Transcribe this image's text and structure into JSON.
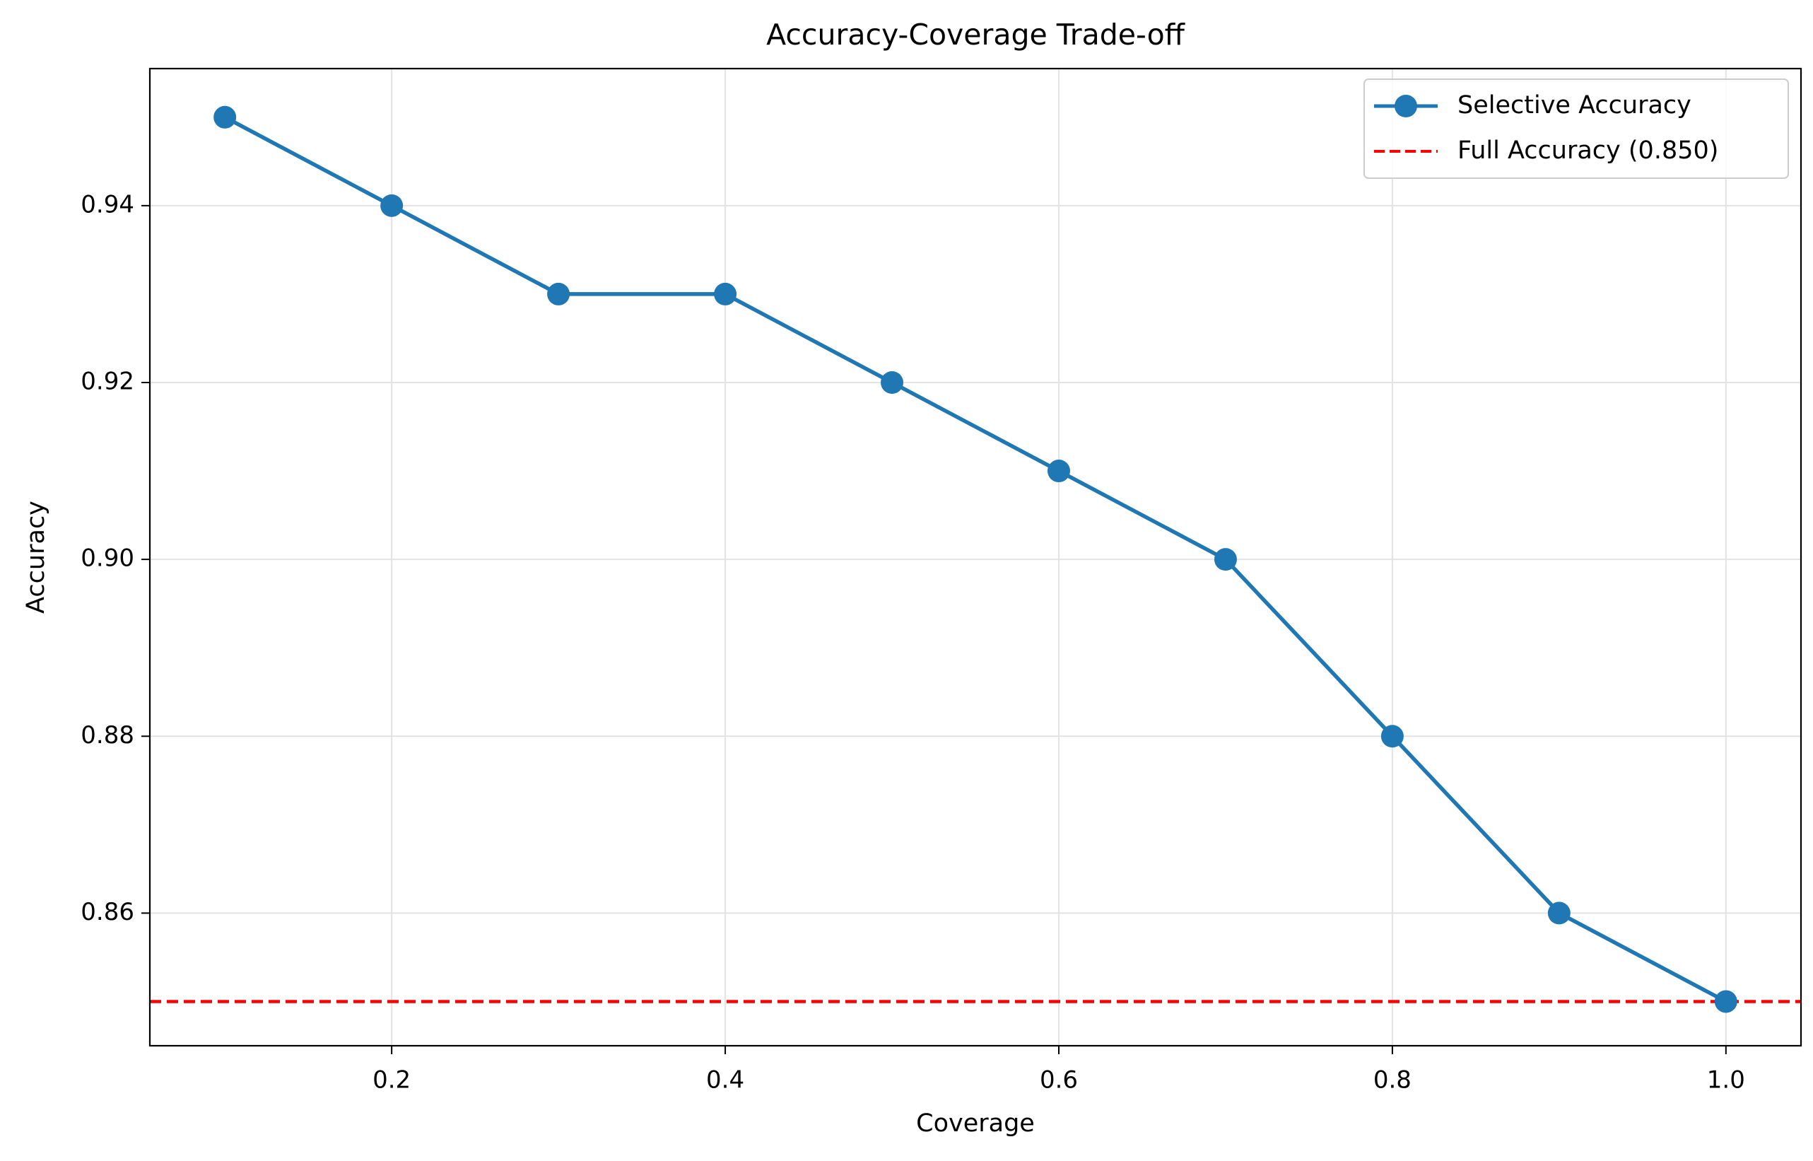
{
  "chart_data": {
    "type": "line",
    "title": "Accuracy-Coverage Trade-off",
    "xlabel": "Coverage",
    "ylabel": "Accuracy",
    "xlim": [
      0.055,
      1.045
    ],
    "ylim": [
      0.845,
      0.9555
    ],
    "xticks": [
      0.2,
      0.4,
      0.6,
      0.8,
      1.0
    ],
    "xtick_labels": [
      "0.2",
      "0.4",
      "0.6",
      "0.8",
      "1.0"
    ],
    "yticks": [
      0.86,
      0.88,
      0.9,
      0.92,
      0.94
    ],
    "ytick_labels": [
      "0.86",
      "0.88",
      "0.90",
      "0.92",
      "0.94"
    ],
    "grid": true,
    "legend_position": "top-right",
    "series": [
      {
        "name": "Selective Accuracy",
        "color": "#1f77b4",
        "style": "solid-with-circle-markers",
        "x": [
          0.1,
          0.2,
          0.3,
          0.4,
          0.5,
          0.6,
          0.7,
          0.8,
          0.9,
          1.0
        ],
        "y": [
          0.95,
          0.94,
          0.93,
          0.93,
          0.92,
          0.91,
          0.9,
          0.88,
          0.86,
          0.85
        ]
      }
    ],
    "reference_lines": [
      {
        "name": "Full Accuracy (0.850)",
        "orientation": "horizontal",
        "y": 0.85,
        "color": "#ff0000",
        "style": "dashed"
      }
    ]
  }
}
